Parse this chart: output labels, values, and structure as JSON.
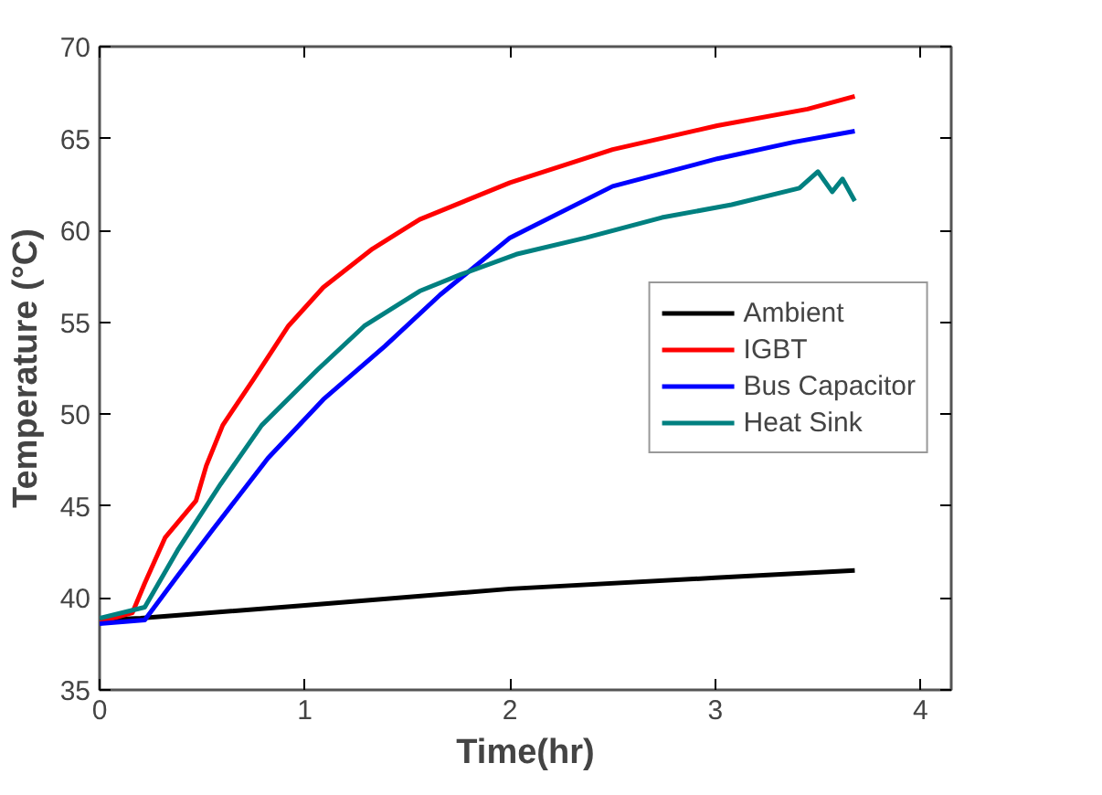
{
  "chart_data": {
    "type": "line",
    "xlabel": "Time(hr)",
    "ylabel": "Temperature (°C)",
    "xlim": [
      0,
      4.15
    ],
    "ylim": [
      35,
      70
    ],
    "xticks": [
      0,
      1,
      2,
      3,
      4
    ],
    "yticks": [
      35,
      40,
      45,
      50,
      55,
      60,
      65,
      70
    ],
    "grid": false,
    "legend": "right",
    "marker": "none",
    "line_style": "solid",
    "series": [
      {
        "name": "Ambient",
        "color": "#000000",
        "x": [
          0,
          0.2,
          1,
          2,
          3,
          3.68
        ],
        "values": [
          38.8,
          38.9,
          39.6,
          40.5,
          41.1,
          41.5
        ]
      },
      {
        "name": "IGBT",
        "color": "#ff0000",
        "x": [
          0,
          0.16,
          0.22,
          0.32,
          0.47,
          0.52,
          0.6,
          0.75,
          0.92,
          1.09,
          1.33,
          1.56,
          2.0,
          2.5,
          3.01,
          3.45,
          3.68
        ],
        "values": [
          38.7,
          39.2,
          40.8,
          43.3,
          45.3,
          47.2,
          49.4,
          51.9,
          54.8,
          56.9,
          59.0,
          60.6,
          62.6,
          64.4,
          65.7,
          66.6,
          67.3
        ]
      },
      {
        "name": "Bus Capacitor",
        "color": "#0000ff",
        "x": [
          0,
          0.22,
          0.38,
          0.55,
          0.82,
          1.09,
          1.39,
          1.66,
          2.0,
          2.5,
          3.01,
          3.38,
          3.68
        ],
        "values": [
          38.6,
          38.8,
          41.2,
          43.7,
          47.6,
          50.8,
          53.7,
          56.5,
          59.6,
          62.4,
          63.9,
          64.8,
          65.4
        ]
      },
      {
        "name": "Heat Sink",
        "color": "#008080",
        "x": [
          0,
          0.22,
          0.38,
          0.59,
          0.79,
          1.06,
          1.29,
          1.56,
          1.76,
          2.03,
          2.37,
          2.74,
          3.08,
          3.41,
          3.5,
          3.57,
          3.62,
          3.68
        ],
        "values": [
          38.9,
          39.5,
          42.6,
          46.2,
          49.4,
          52.4,
          54.8,
          56.7,
          57.6,
          58.7,
          59.6,
          60.7,
          61.4,
          62.3,
          63.2,
          62.1,
          62.8,
          61.6
        ]
      }
    ]
  }
}
